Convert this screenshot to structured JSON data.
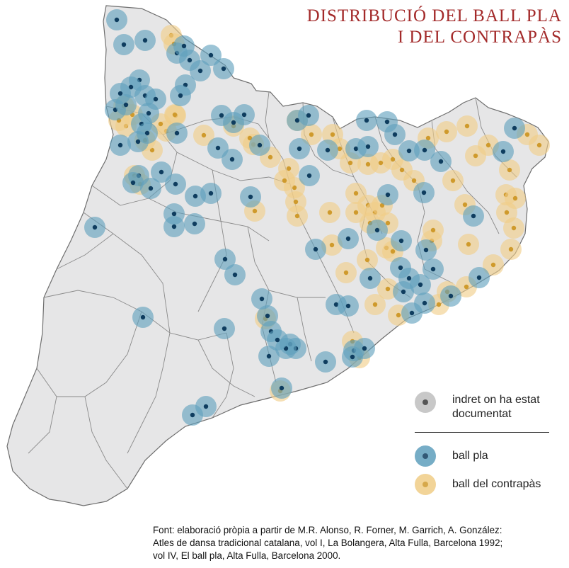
{
  "title": {
    "line1": "DISTRIBUCIÓ DEL BALL PLA",
    "line2": "I DEL CONTRAPÀS"
  },
  "colors": {
    "land": "#e6e6e7",
    "border": "#8a8a8a",
    "ball_pla_halo": "#5f9fbd",
    "ball_pla_core": "#0f3d5f",
    "contrapas_halo": "#f0cd87",
    "contrapas_core": "#cf9a2c",
    "documented_halo": "#c8c8c8",
    "documented_core": "#555555",
    "title": "#a32a2a"
  },
  "legend": {
    "documented": "indret on ha estat documentat",
    "ball_pla": "ball pla",
    "contrapas": "ball del contrapàs"
  },
  "source": {
    "line1": "Font:  elaboració pròpia a partir de M.R. Alonso, R. Forner, M. Garrich, A. González:",
    "line2": "Atles de dansa tradicional catalana, vol I, La Bolangera, Alta Fulla, Barcelona 1992;",
    "line3": "vol IV, El ball pla, Alta Fulla, Barcelona 2000."
  }
}
